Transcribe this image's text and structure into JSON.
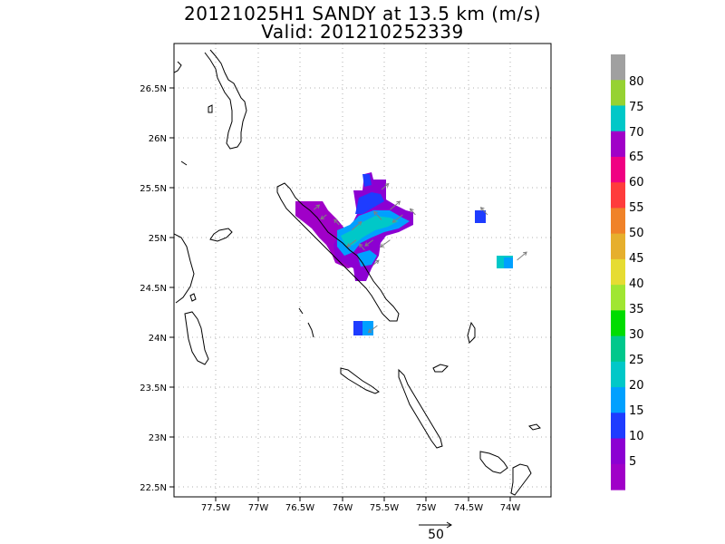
{
  "title": "20121025H1 SANDY at 13.5 km (m/s)",
  "subtitle": "Valid: 201210252339",
  "lat_ticks": [
    "26.5N",
    "26N",
    "25.5N",
    "25N",
    "24.5N",
    "24N",
    "23.5N",
    "23N",
    "22.5N"
  ],
  "lon_ticks": [
    "77.5W",
    "77W",
    "76.5W",
    "76W",
    "75.5W",
    "75W",
    "74.5W",
    "74W"
  ],
  "colorbar": {
    "labels": [
      "80",
      "75",
      "70",
      "65",
      "60",
      "55",
      "50",
      "45",
      "40",
      "35",
      "30",
      "25",
      "20",
      "15",
      "10",
      "5"
    ],
    "colors": [
      "#a0a0a0",
      "#96d232",
      "#00c8c8",
      "#a000c8",
      "#f00082",
      "#ff3c3c",
      "#f08228",
      "#e6af2d",
      "#e6dc32",
      "#a0e632",
      "#00dc00",
      "#00c88c",
      "#00c8c8",
      "#00a0ff",
      "#1e3cff",
      "#8c00d2",
      "#a000c8"
    ]
  },
  "vector_scale_label": "50",
  "chart_data": {
    "type": "heatmap",
    "title": "20121025H1 SANDY at 13.5 km (m/s)",
    "subtitle": "Valid: 201210252339",
    "xlim": [
      -78.1,
      -73.65
    ],
    "ylim": [
      22.4,
      26.9
    ],
    "units": "m/s",
    "grid": true,
    "wind_cells": [
      {
        "lon": -76.45,
        "lat": 25.25,
        "speed": 6
      },
      {
        "lon": -76.3,
        "lat": 25.2,
        "speed": 5
      },
      {
        "lon": -76.15,
        "lat": 25.1,
        "speed": 6
      },
      {
        "lon": -76.0,
        "lat": 25.05,
        "speed": 22
      },
      {
        "lon": -75.95,
        "lat": 24.95,
        "speed": 18
      },
      {
        "lon": -75.85,
        "lat": 24.85,
        "speed": 8
      },
      {
        "lon": -75.75,
        "lat": 24.7,
        "speed": 6
      },
      {
        "lon": -75.75,
        "lat": 24.95,
        "speed": 14
      },
      {
        "lon": -75.65,
        "lat": 25.15,
        "speed": 18
      },
      {
        "lon": -75.55,
        "lat": 25.25,
        "speed": 24
      },
      {
        "lon": -75.4,
        "lat": 25.2,
        "speed": 22
      },
      {
        "lon": -75.25,
        "lat": 25.2,
        "speed": 8
      },
      {
        "lon": -75.65,
        "lat": 25.45,
        "speed": 12
      },
      {
        "lon": -75.55,
        "lat": 24.95,
        "speed": 20
      },
      {
        "lon": -74.4,
        "lat": 25.2,
        "speed": 14
      },
      {
        "lon": -74.05,
        "lat": 24.75,
        "speed": 22
      },
      {
        "lon": -75.7,
        "lat": 24.1,
        "speed": 18
      }
    ]
  }
}
